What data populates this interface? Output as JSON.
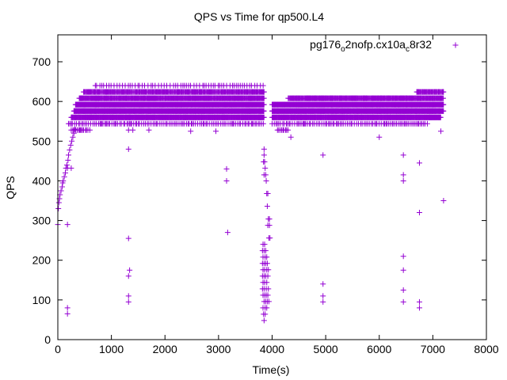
{
  "chart_data": {
    "type": "scatter",
    "title": "QPS vs Time for qp500.L4",
    "xlabel": "Time(s)",
    "ylabel": "QPS",
    "xlim": [
      0,
      8000
    ],
    "ylim": [
      0,
      770
    ],
    "xticks": [
      0,
      1000,
      2000,
      3000,
      4000,
      5000,
      6000,
      7000,
      8000
    ],
    "yticks": [
      0,
      100,
      200,
      300,
      400,
      500,
      600,
      700
    ],
    "grid": false,
    "legend_position": "top-right",
    "series": [
      {
        "name": "pg176_o2nofp.cx10a_c8r32",
        "color": "#9400d3",
        "marker": "plus",
        "bands": [
          {
            "y": 640,
            "x_ranges": [
              [
                700,
                3850
              ]
            ],
            "step": 45
          },
          {
            "y": 624,
            "x_ranges": [
              [
                480,
                3850
              ],
              [
                6700,
                7200
              ]
            ],
            "step": 12
          },
          {
            "y": 608,
            "x_ranges": [
              [
                400,
                3850
              ],
              [
                4300,
                6600
              ],
              [
                6600,
                7200
              ]
            ],
            "step": 10
          },
          {
            "y": 592,
            "x_ranges": [
              [
                330,
                3850
              ],
              [
                4000,
                7200
              ]
            ],
            "step": 6
          },
          {
            "y": 576,
            "x_ranges": [
              [
                300,
                3850
              ],
              [
                4000,
                7200
              ]
            ],
            "step": 6
          },
          {
            "y": 560,
            "x_ranges": [
              [
                250,
                3850
              ],
              [
                4000,
                7150
              ]
            ],
            "step": 8
          },
          {
            "y": 544,
            "x_ranges": [
              [
                200,
                3850
              ],
              [
                4000,
                6900
              ]
            ],
            "step": 30
          },
          {
            "y": 528,
            "x_ranges": [
              [
                250,
                600
              ],
              [
                4100,
                4300
              ]
            ],
            "step": 25
          }
        ],
        "points": [
          [
            0,
            290
          ],
          [
            10,
            330
          ],
          [
            20,
            345
          ],
          [
            30,
            355
          ],
          [
            40,
            365
          ],
          [
            60,
            375
          ],
          [
            80,
            385
          ],
          [
            90,
            395
          ],
          [
            100,
            400
          ],
          [
            120,
            410
          ],
          [
            140,
            420
          ],
          [
            150,
            432
          ],
          [
            170,
            440
          ],
          [
            190,
            452
          ],
          [
            200,
            465
          ],
          [
            220,
            478
          ],
          [
            240,
            490
          ],
          [
            260,
            500
          ],
          [
            280,
            510
          ],
          [
            300,
            520
          ],
          [
            320,
            530
          ],
          [
            180,
            432
          ],
          [
            250,
            432
          ],
          [
            180,
            290
          ],
          [
            180,
            80
          ],
          [
            180,
            65
          ],
          [
            1320,
            480
          ],
          [
            1320,
            255
          ],
          [
            1320,
            160
          ],
          [
            1340,
            175
          ],
          [
            1320,
            110
          ],
          [
            1320,
            95
          ],
          [
            1320,
            528
          ],
          [
            1400,
            528
          ],
          [
            1700,
            528
          ],
          [
            2480,
            525
          ],
          [
            2950,
            525
          ],
          [
            3150,
            430
          ],
          [
            3150,
            400
          ],
          [
            3170,
            270
          ],
          [
            3850,
            480
          ],
          [
            3850,
            465
          ],
          [
            3840,
            448
          ],
          [
            3860,
            448
          ],
          [
            3870,
            432
          ],
          [
            3850,
            415
          ],
          [
            3880,
            415
          ],
          [
            3890,
            400
          ],
          [
            3900,
            368
          ],
          [
            3920,
            368
          ],
          [
            3910,
            336
          ],
          [
            3930,
            304
          ],
          [
            3950,
            304
          ],
          [
            3920,
            288
          ],
          [
            3950,
            288
          ],
          [
            3940,
            256
          ],
          [
            3960,
            256
          ],
          [
            3830,
            240
          ],
          [
            3860,
            240
          ],
          [
            3820,
            224
          ],
          [
            3850,
            224
          ],
          [
            3880,
            224
          ],
          [
            3830,
            208
          ],
          [
            3870,
            208
          ],
          [
            3900,
            208
          ],
          [
            3820,
            192
          ],
          [
            3850,
            192
          ],
          [
            3880,
            192
          ],
          [
            3910,
            192
          ],
          [
            3830,
            176
          ],
          [
            3860,
            176
          ],
          [
            3900,
            176
          ],
          [
            3930,
            176
          ],
          [
            3820,
            160
          ],
          [
            3850,
            160
          ],
          [
            3880,
            160
          ],
          [
            3920,
            160
          ],
          [
            3830,
            144
          ],
          [
            3860,
            144
          ],
          [
            3900,
            144
          ],
          [
            3820,
            128
          ],
          [
            3850,
            128
          ],
          [
            3890,
            128
          ],
          [
            3930,
            128
          ],
          [
            3830,
            112
          ],
          [
            3860,
            112
          ],
          [
            3890,
            112
          ],
          [
            3920,
            112
          ],
          [
            3850,
            96
          ],
          [
            3880,
            96
          ],
          [
            3910,
            96
          ],
          [
            3940,
            96
          ],
          [
            3830,
            80
          ],
          [
            3870,
            80
          ],
          [
            3900,
            80
          ],
          [
            3840,
            64
          ],
          [
            3870,
            64
          ],
          [
            3850,
            48
          ],
          [
            4350,
            510
          ],
          [
            4950,
            465
          ],
          [
            4950,
            140
          ],
          [
            4950,
            110
          ],
          [
            4950,
            95
          ],
          [
            6000,
            510
          ],
          [
            6450,
            465
          ],
          [
            6450,
            415
          ],
          [
            6450,
            400
          ],
          [
            6450,
            210
          ],
          [
            6450,
            175
          ],
          [
            6450,
            125
          ],
          [
            6450,
            95
          ],
          [
            6750,
            445
          ],
          [
            6750,
            320
          ],
          [
            6750,
            95
          ],
          [
            6750,
            80
          ],
          [
            7150,
            525
          ],
          [
            7200,
            350
          ]
        ]
      }
    ]
  }
}
